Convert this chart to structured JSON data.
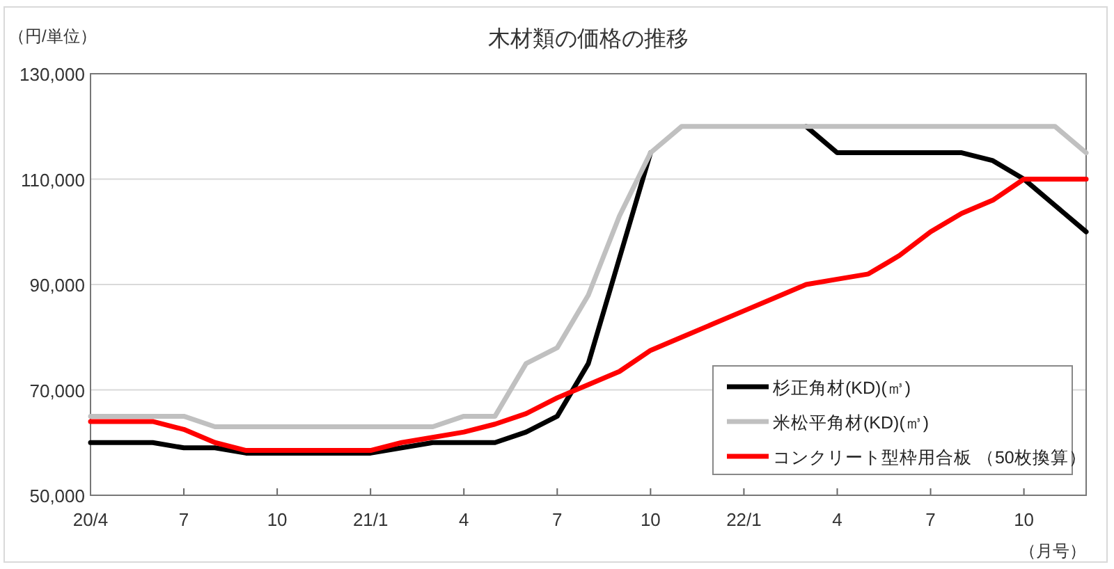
{
  "chart_data": {
    "type": "line",
    "title": "木材類の価格の推移",
    "ylabel": "（円/単位）",
    "xlabel": "（月号）",
    "categories": [
      "20/4",
      null,
      null,
      "7",
      null,
      null,
      "10",
      null,
      null,
      "21/1",
      null,
      null,
      "4",
      null,
      null,
      "7",
      null,
      null,
      "10",
      null,
      null,
      "22/1",
      null,
      null,
      "4",
      null,
      null,
      "7",
      null,
      null,
      "10",
      null,
      null
    ],
    "ylim": [
      50000,
      130000
    ],
    "yticks": [
      {
        "value": 50000,
        "label": "50,000"
      },
      {
        "value": 70000,
        "label": "70,000"
      },
      {
        "value": 90000,
        "label": "90,000"
      },
      {
        "value": 110000,
        "label": "110,000"
      },
      {
        "value": 130000,
        "label": "130,000"
      }
    ],
    "grid": "y",
    "legend": "bottom right",
    "line_style": "solid",
    "series": [
      {
        "name": "杉正角材(KD)(㎥)",
        "color": "#000000",
        "values": [
          60000,
          60000,
          60000,
          59000,
          59000,
          58000,
          58000,
          58000,
          58000,
          58000,
          59000,
          60000,
          60000,
          60000,
          62000,
          65000,
          75000,
          95000,
          115000,
          null,
          null,
          null,
          null,
          120000,
          115000,
          115000,
          115000,
          115000,
          115000,
          113500,
          110000,
          105000,
          100000
        ]
      },
      {
        "name": "米松平角材(KD)(㎥)",
        "color": "#c0c0c0",
        "values": [
          65000,
          65000,
          65000,
          65000,
          63000,
          63000,
          63000,
          63000,
          63000,
          63000,
          63000,
          63000,
          65000,
          65000,
          75000,
          78000,
          88000,
          103000,
          115000,
          120000,
          120000,
          120000,
          120000,
          120000,
          120000,
          120000,
          120000,
          120000,
          120000,
          120000,
          120000,
          120000,
          115000
        ]
      },
      {
        "name": "コンクリート型枠用合板 （50枚換算）",
        "color": "#ff0000",
        "values": [
          64000,
          64000,
          64000,
          62500,
          60000,
          58500,
          58500,
          58500,
          58500,
          58500,
          60000,
          61000,
          62000,
          63500,
          65500,
          68500,
          71000,
          73500,
          77500,
          80000,
          82500,
          85000,
          87500,
          90000,
          91000,
          92000,
          95500,
          100000,
          103500,
          106000,
          110000,
          110000,
          110000
        ]
      }
    ]
  }
}
